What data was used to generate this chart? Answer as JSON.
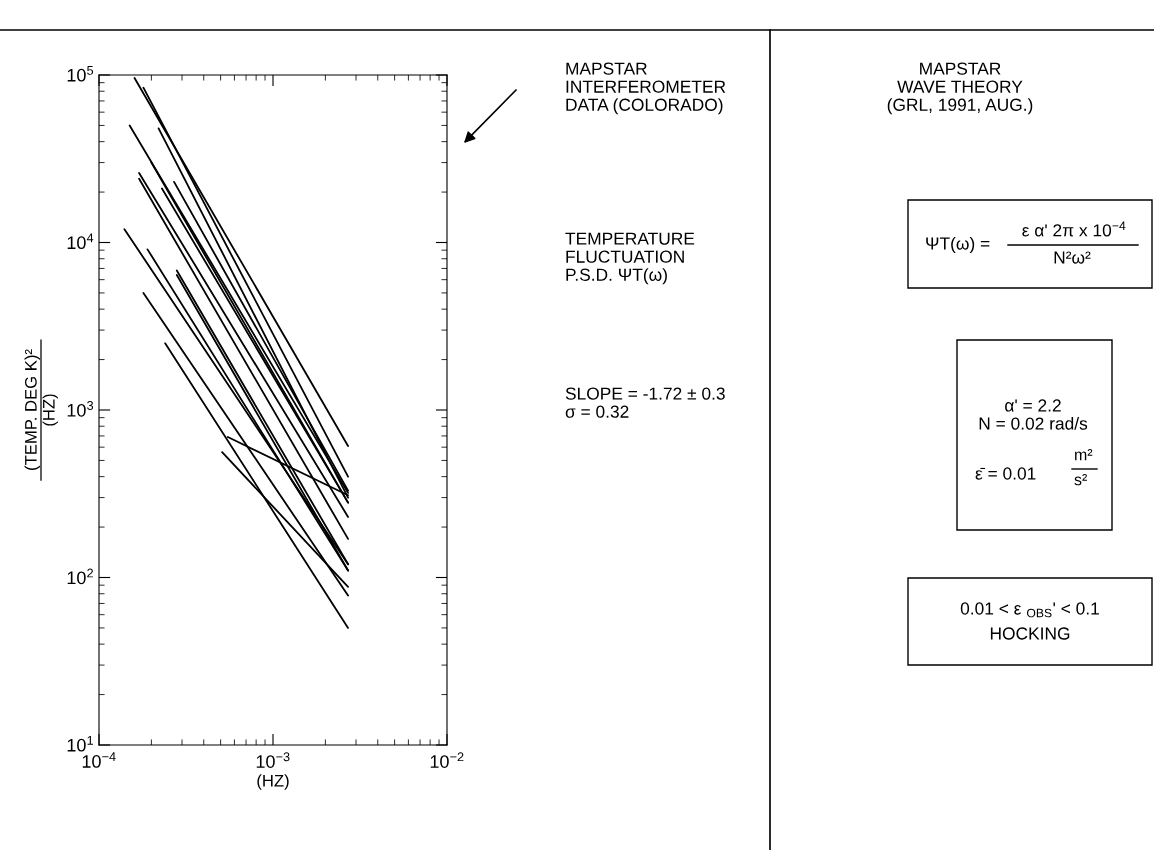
{
  "chart_data": {
    "type": "line",
    "xlabel": "(HZ)",
    "ylabel": "(TEMP. DEG K)²\n(HZ)",
    "log": "xy",
    "grid": false,
    "legend": false,
    "marker": "none",
    "line_style": "solid",
    "xlim": [
      0.0001,
      0.01
    ],
    "ylim": [
      10,
      100000
    ],
    "xticks": [
      {
        "value": 0.0001,
        "label": "10$^{−4}$"
      },
      {
        "value": 0.001,
        "label": "10$^{−3}$"
      },
      {
        "value": 0.01,
        "label": "10$^{−2}$"
      }
    ],
    "yticks": [
      {
        "value": 10,
        "label": "10$^{1}$"
      },
      {
        "value": 100,
        "label": "10$^{2}$"
      },
      {
        "value": 1000,
        "label": "10$^{3}$"
      },
      {
        "value": 10000,
        "label": "10$^{4}$"
      },
      {
        "value": 100000,
        "label": "10$^{5}$"
      }
    ],
    "series": [
      {
        "color": "#000000",
        "x": [
          0.00016,
          0.0027
        ],
        "values": [
          96000,
          610
        ]
      },
      {
        "color": "#000000",
        "x": [
          0.00018,
          0.0027
        ],
        "values": [
          84000,
          400
        ]
      },
      {
        "color": "#000000",
        "x": [
          0.00015,
          0.0027
        ],
        "values": [
          50000,
          320
        ]
      },
      {
        "color": "#000000",
        "x": [
          0.00022,
          0.0027
        ],
        "values": [
          48000,
          300
        ]
      },
      {
        "color": "#000000",
        "x": [
          0.0002,
          0.0027
        ],
        "values": [
          30000,
          280
        ]
      },
      {
        "color": "#000000",
        "x": [
          0.00017,
          0.0027
        ],
        "values": [
          26000,
          230
        ]
      },
      {
        "color": "#000000",
        "x": [
          0.00017,
          0.0027
        ],
        "values": [
          24000,
          170
        ]
      },
      {
        "color": "#000000",
        "x": [
          0.00027,
          0.0027
        ],
        "values": [
          23000,
          330
        ]
      },
      {
        "color": "#000000",
        "x": [
          0.00023,
          0.0027
        ],
        "values": [
          21000,
          280
        ]
      },
      {
        "color": "#000000",
        "x": [
          0.00014,
          0.0027
        ],
        "values": [
          12000,
          120
        ]
      },
      {
        "color": "#000000",
        "x": [
          0.00019,
          0.0027
        ],
        "values": [
          9100,
          110
        ]
      },
      {
        "color": "#000000",
        "x": [
          0.00028,
          0.0027
        ],
        "values": [
          6800,
          120
        ]
      },
      {
        "color": "#000000",
        "x": [
          0.00028,
          0.0027
        ],
        "values": [
          6400,
          110
        ]
      },
      {
        "color": "#000000",
        "x": [
          0.00018,
          0.0027
        ],
        "values": [
          5000,
          78
        ]
      },
      {
        "color": "#000000",
        "x": [
          0.00055,
          0.0027
        ],
        "values": [
          690,
          310
        ]
      },
      {
        "color": "#000000",
        "x": [
          0.00051,
          0.0027
        ],
        "values": [
          560,
          88
        ]
      },
      {
        "color": "#000000",
        "x": [
          0.00024,
          0.0027
        ],
        "values": [
          2500,
          50
        ]
      }
    ],
    "annotations": [
      "MAPSTAR\nINTERFEROMETER\nDATA (COLORADO)",
      "TEMPERATURE\nFLUCTUATION\nP.S.D. ΨT(ω)",
      "SLOPE = -1.72 ± 0.3\nσ = 0.32",
      "MAPSTAR\nWAVE THEORY\n(GRL, 1991, AUG.)",
      "ΨT(ω) =",
      "ε α' 2π x 10$^{−4}$",
      "N²ω²",
      "α' = 2.2\nN = 0.02 rad/s",
      "ε̄ = 0.01",
      "m²",
      "s²",
      "0.01 < ε $_{OBS}$' < 0.1",
      "HOCKING"
    ]
  }
}
